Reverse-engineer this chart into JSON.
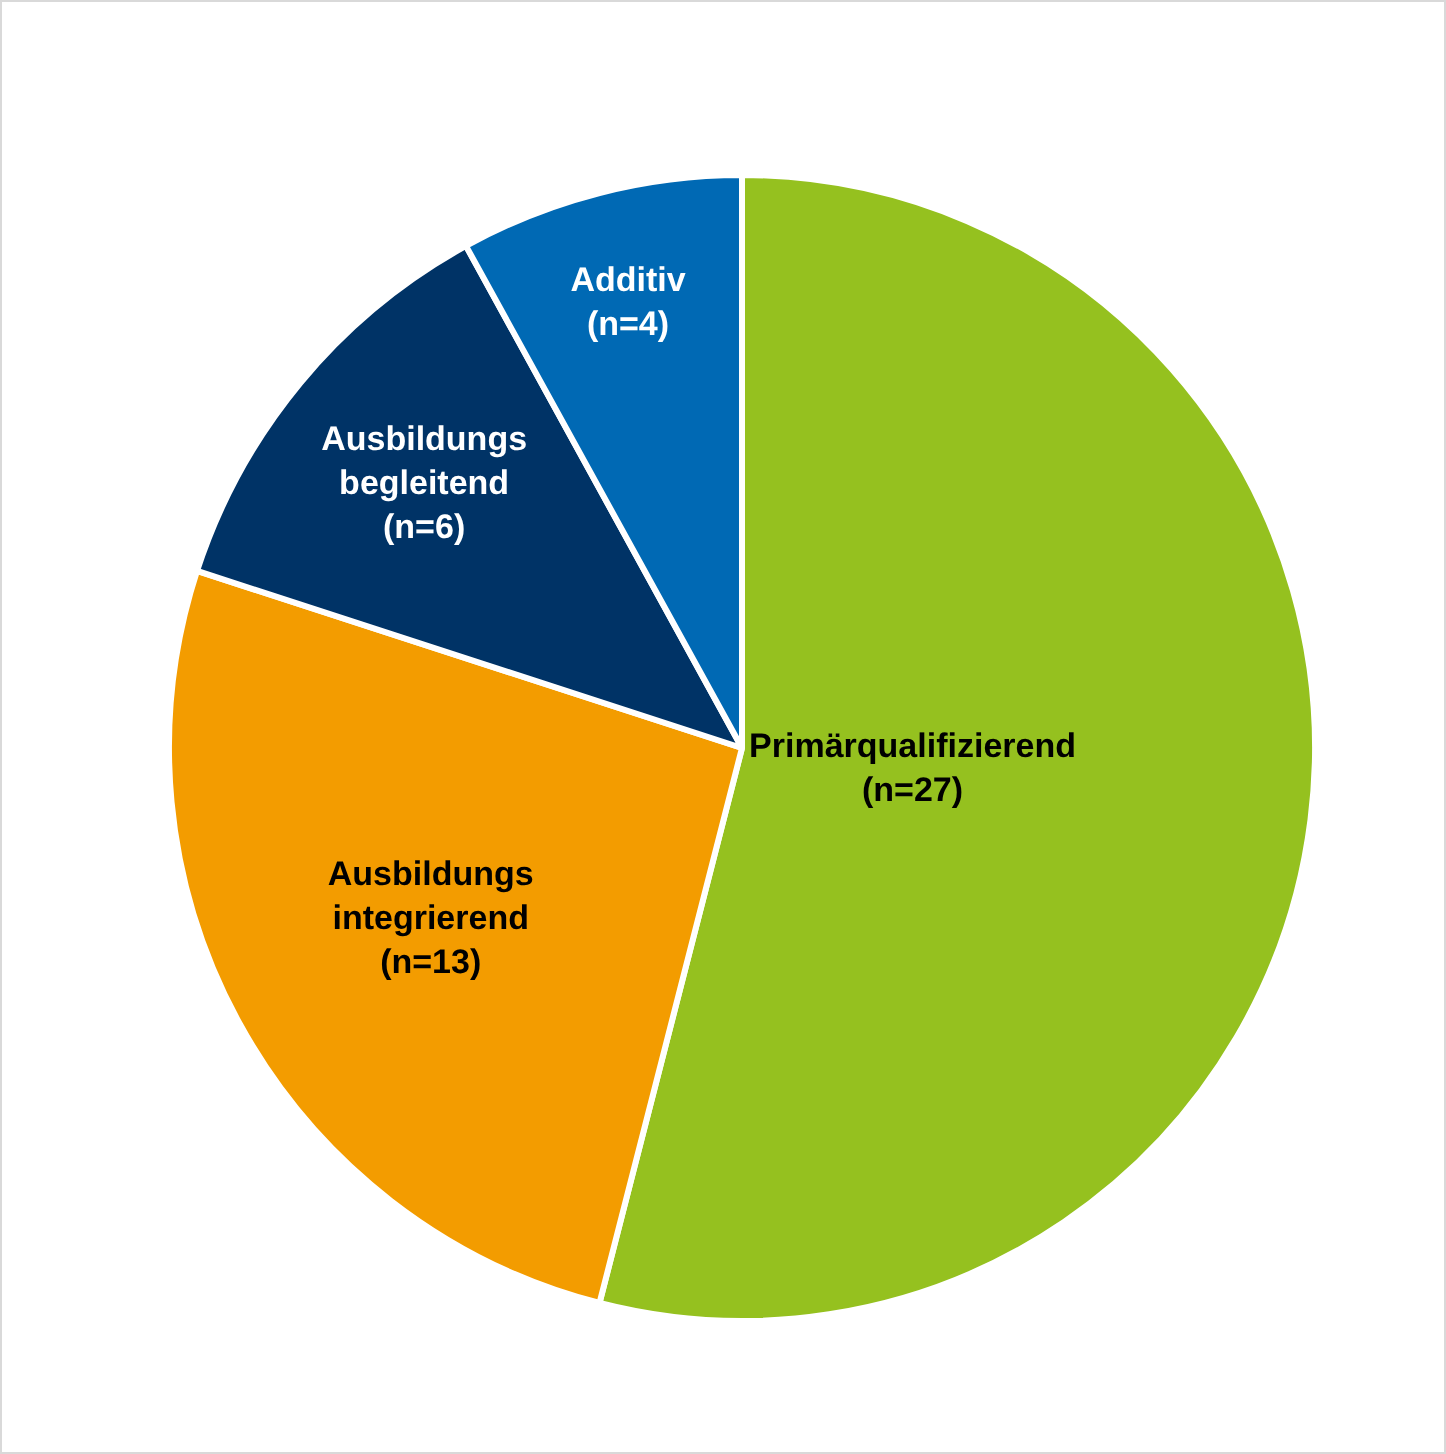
{
  "chart_data": {
    "type": "pie",
    "categories": [
      "Primärqualifizierend",
      "Ausbildungs integrierend",
      "Ausbildungs begleitend",
      "Additiv"
    ],
    "values": [
      27,
      13,
      6,
      4
    ],
    "value_labels": [
      "(n=27)",
      "(n=13)",
      "(n=6)",
      "(n=4)"
    ],
    "colors": [
      "#95c11f",
      "#f39c00",
      "#003366",
      "#0069b4"
    ],
    "legend": false
  }
}
